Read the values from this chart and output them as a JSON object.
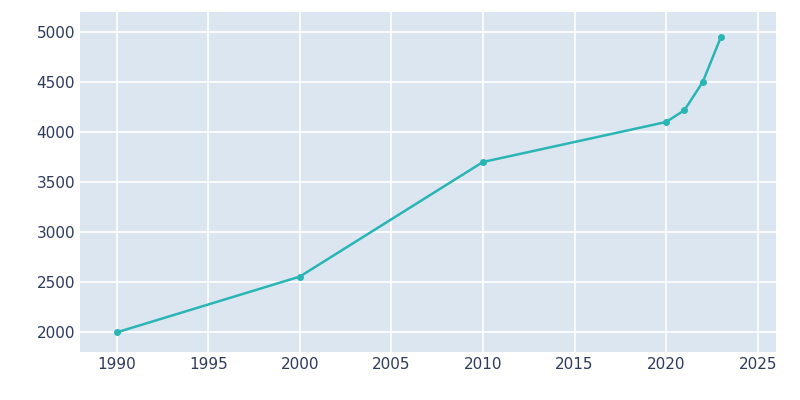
{
  "years": [
    1990,
    2000,
    2010,
    2020,
    2021,
    2022,
    2023
  ],
  "population": [
    1996,
    2554,
    3700,
    4100,
    4218,
    4500,
    4953
  ],
  "line_color": "#2ab5b5",
  "marker_color": "#2ab5b5",
  "plot_bg_color": "#dce6f0",
  "fig_bg_color": "#ffffff",
  "text_color": "#2d3a5c",
  "grid_color": "#ffffff",
  "xlim": [
    1988,
    2026
  ],
  "ylim": [
    1800,
    5200
  ],
  "xticks": [
    1990,
    1995,
    2000,
    2005,
    2010,
    2015,
    2020,
    2025
  ],
  "yticks": [
    2000,
    2500,
    3000,
    3500,
    4000,
    4500,
    5000
  ],
  "linewidth": 1.8,
  "markersize": 4
}
